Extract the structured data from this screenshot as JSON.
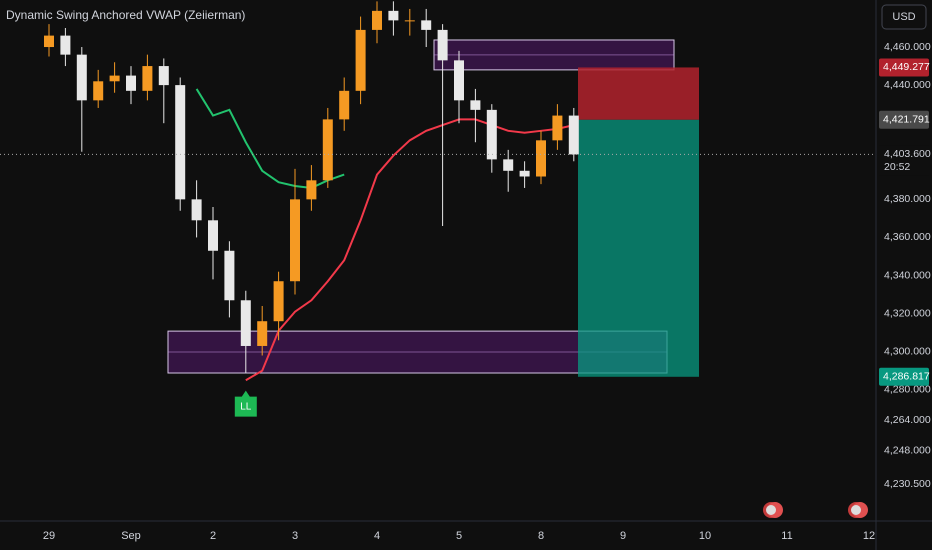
{
  "chart_data": {
    "type": "candlestick",
    "title": "Dynamic Swing Anchored VWAP (Zeiierman)",
    "currency": "USD",
    "categories": [
      "29",
      null,
      null,
      null,
      null,
      "Sep",
      null,
      null,
      null,
      null,
      "2",
      null,
      null,
      null,
      null,
      "3",
      null,
      null,
      null,
      null,
      "4",
      null,
      null,
      null,
      null,
      "5",
      null,
      null,
      null,
      null,
      "8",
      null,
      null,
      null,
      null,
      "9",
      null,
      null,
      null,
      null,
      "10",
      null,
      null,
      null,
      null,
      "11",
      null,
      null,
      null,
      null,
      "12"
    ],
    "open": [
      4460,
      4466,
      4456,
      4432,
      4442,
      4445,
      4437,
      4450,
      4440,
      4380,
      4369,
      4353,
      4327,
      4303,
      4316,
      4337,
      4380,
      4390,
      4422,
      4437,
      4469,
      4479,
      4474,
      4474,
      4469,
      4453,
      4432,
      4427,
      4401,
      4395,
      4392,
      4411,
      4424,
      null,
      null,
      null,
      null,
      null,
      null,
      null,
      null,
      null,
      null,
      null,
      null,
      null,
      null,
      null,
      null,
      null,
      null
    ],
    "high": [
      4472,
      4470,
      4460,
      4448,
      4452,
      4450,
      4456,
      4454,
      4444,
      4390,
      4376,
      4358,
      4332,
      4324,
      4342,
      4396,
      4398,
      4428,
      4444,
      4476,
      4484,
      4484,
      4480,
      4480,
      4472,
      4458,
      4438,
      4430,
      4406,
      4400,
      4416,
      4430,
      4428,
      null,
      null,
      null,
      null,
      null,
      null,
      null,
      null,
      null,
      null,
      null,
      null,
      null,
      null,
      null,
      null,
      null,
      null
    ],
    "low": [
      4455,
      4450,
      4405,
      4428,
      4436,
      4430,
      4432,
      4420,
      4374,
      4360,
      4338,
      4318,
      4289,
      4298,
      4306,
      4330,
      4374,
      4386,
      4416,
      4430,
      4462,
      4466,
      4466,
      4460,
      4366,
      4420,
      4410,
      4394,
      4384,
      4386,
      4388,
      4406,
      4400,
      null,
      null,
      null,
      null,
      null,
      null,
      null,
      null,
      null,
      null,
      null,
      null,
      null,
      null,
      null,
      null,
      null,
      null
    ],
    "close": [
      4466,
      4456,
      4432,
      4442,
      4445,
      4437,
      4450,
      4440,
      4380,
      4369,
      4353,
      4327,
      4303,
      4316,
      4337,
      4380,
      4390,
      4422,
      4437,
      4469,
      4479,
      4474,
      4474,
      4469,
      4453,
      4432,
      4427,
      4401,
      4395,
      4392,
      4411,
      4424,
      4403.6,
      null,
      null,
      null,
      null,
      null,
      null,
      null,
      null,
      null,
      null,
      null,
      null,
      null,
      null,
      null,
      null,
      null,
      null
    ],
    "up_color": "#f59a23",
    "down_color": "#e8e8e8",
    "lines": [
      {
        "color": "#22c36e",
        "values": [
          null,
          null,
          null,
          null,
          null,
          null,
          null,
          null,
          null,
          4438,
          4424,
          4427,
          4410,
          4395,
          4389,
          4387,
          4386,
          4390,
          4393,
          null,
          null,
          null,
          null,
          null,
          null,
          null,
          null,
          null,
          null,
          null,
          null,
          null,
          null,
          null,
          null,
          null,
          null,
          null,
          null,
          null,
          null,
          null,
          null,
          null,
          null,
          null,
          null,
          null,
          null,
          null,
          null
        ]
      },
      {
        "color": "#f2394a",
        "values": [
          null,
          null,
          null,
          null,
          null,
          null,
          null,
          null,
          null,
          null,
          null,
          null,
          4285,
          4290,
          4311,
          4321,
          4327,
          4337,
          4348,
          4369,
          4393,
          4403,
          4411,
          4416,
          4419,
          4422,
          4422,
          4419,
          4416,
          4415,
          4416,
          4417,
          4419,
          null,
          null,
          null,
          null,
          null,
          null,
          null,
          null,
          null,
          null,
          null,
          null,
          null,
          null,
          null,
          null,
          null,
          null
        ]
      }
    ],
    "zones": [
      {
        "top": 4463.7,
        "bottom": 4448
      },
      {
        "top": 4310.8,
        "bottom": 4288.8
      }
    ],
    "position": {
      "stop": {
        "value": 4449.277,
        "label": "4,449.277",
        "color": "#b2222d"
      },
      "entry": {
        "value": 4421.791,
        "label": "4,421.791",
        "color": "#4a4a4a"
      },
      "target": {
        "value": 4286.817,
        "label": "4,286.817",
        "color": "#089981"
      }
    },
    "current": {
      "value": 4403.6,
      "label": "4,403.600",
      "countdown": "20:52"
    },
    "annotation": "LL",
    "ylim": [
      4211.6,
      4484.7
    ],
    "yticks": [
      {
        "value": 4460,
        "label": "4,460.000"
      },
      {
        "value": 4440,
        "label": "4,440.000"
      },
      {
        "value": 4380,
        "label": "4,380.000"
      },
      {
        "value": 4360,
        "label": "4,360.000"
      },
      {
        "value": 4340,
        "label": "4,340.000"
      },
      {
        "value": 4320,
        "label": "4,320.000"
      },
      {
        "value": 4300,
        "label": "4,300.000"
      },
      {
        "value": 4280,
        "label": "4,280.000"
      },
      {
        "value": 4264,
        "label": "4,264.000"
      },
      {
        "value": 4248,
        "label": "4,248.000"
      },
      {
        "value": 4230.5,
        "label": "4,230.500"
      }
    ]
  }
}
